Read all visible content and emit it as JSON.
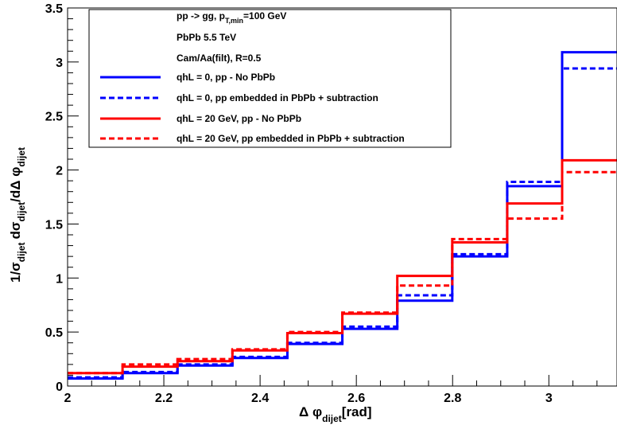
{
  "chart_data": {
    "type": "line",
    "style": "step",
    "xlabel_main": "Δ φ",
    "xlabel_sub": "dijet",
    "xlabel_unit": "[rad]",
    "ylabel_main": "1/σ",
    "ylabel_sub1": "dijet",
    "ylabel_mid": "dσ",
    "ylabel_sub2": "dijet",
    "ylabel_tail": "/dΔ φ",
    "ylabel_sub3": "dijet",
    "xlim": [
      2.0,
      3.1416
    ],
    "ylim": [
      0,
      3.5
    ],
    "xticks": [
      2,
      2.2,
      2.4,
      2.6,
      2.8,
      3
    ],
    "xtick_labels": [
      "2",
      "2.2",
      "2.4",
      "2.6",
      "2.8",
      "3"
    ],
    "yticks": [
      0,
      0.5,
      1,
      1.5,
      2,
      2.5,
      3,
      3.5
    ],
    "ytick_labels": [
      "0",
      "0.5",
      "1",
      "1.5",
      "2",
      "2.5",
      "3",
      "3.5"
    ],
    "bin_edges": [
      2.0,
      2.1142,
      2.2284,
      2.3425,
      2.4567,
      2.5709,
      2.6851,
      2.7993,
      2.9135,
      3.0276,
      3.1416
    ],
    "grid": false,
    "legend_position": "top-left",
    "legend_header": [
      {
        "main": "pp -> gg, p",
        "sub": "T,min",
        "tail": "=100 GeV"
      },
      {
        "main": "PbPb   5.5 TeV",
        "sub": "",
        "tail": ""
      },
      {
        "main": "Cam/Aa(filt), R=0.5",
        "sub": "",
        "tail": ""
      }
    ],
    "series": [
      {
        "name": "qhL = 0, pp - No PbPb",
        "color": "#0000ff",
        "dash": "solid",
        "values": [
          0.07,
          0.12,
          0.19,
          0.26,
          0.39,
          0.53,
          0.79,
          1.2,
          1.85,
          3.09
        ]
      },
      {
        "name": "qhL = 0, pp embedded in PbPb + subtraction",
        "color": "#0000ff",
        "dash": "dashed",
        "values": [
          0.08,
          0.13,
          0.2,
          0.27,
          0.4,
          0.55,
          0.84,
          1.22,
          1.89,
          2.94
        ]
      },
      {
        "name": "qhL = 20 GeV, pp - No PbPb",
        "color": "#ff0000",
        "dash": "solid",
        "values": [
          0.12,
          0.18,
          0.23,
          0.33,
          0.49,
          0.67,
          1.02,
          1.33,
          1.69,
          2.09
        ]
      },
      {
        "name": "qhL = 20 GeV, pp embedded in PbPb + subtraction",
        "color": "#ff0000",
        "dash": "dashed",
        "values": [
          0.12,
          0.2,
          0.25,
          0.34,
          0.5,
          0.68,
          0.93,
          1.36,
          1.55,
          1.98
        ]
      }
    ]
  }
}
